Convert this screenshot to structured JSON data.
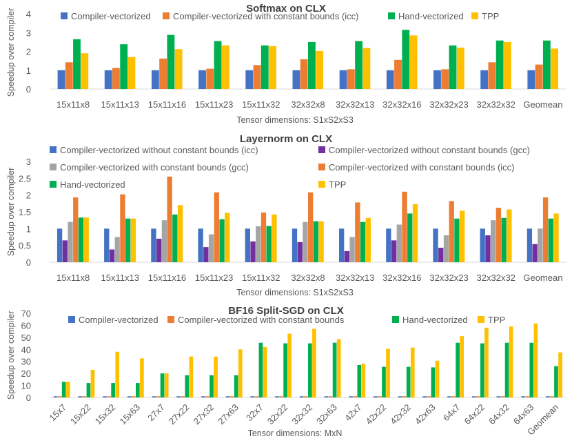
{
  "chart_data": [
    {
      "type": "bar",
      "title": "Softmax on CLX",
      "xlabel": "Tensor dimensions: S1xS2xS3",
      "ylabel": "Speedup over compiler",
      "ylim": [
        0,
        4
      ],
      "yticks": [
        0,
        1,
        2,
        3,
        4
      ],
      "grid": false,
      "legend_position": "top",
      "categories": [
        "15x11x8",
        "15x11x13",
        "15x11x16",
        "15x11x23",
        "15x11x32",
        "32x32x8",
        "32x32x13",
        "32x32x16",
        "32x32x23",
        "32x32x32",
        "Geomean"
      ],
      "series": [
        {
          "name": "Compiler-vectorized",
          "color": "#4472C4",
          "values": [
            1,
            1,
            1,
            1,
            1,
            1,
            1,
            1,
            1,
            1,
            1
          ]
        },
        {
          "name": "Compiler-vectorized with constant bounds (icc)",
          "color": "#ED7D31",
          "values": [
            1.42,
            1.12,
            1.62,
            1.08,
            1.27,
            1.58,
            1.05,
            1.55,
            1.05,
            1.42,
            1.3
          ]
        },
        {
          "name": "Hand-vectorized",
          "color": "#00B050",
          "values": [
            2.65,
            2.38,
            2.88,
            2.55,
            2.32,
            2.5,
            2.55,
            3.15,
            2.32,
            2.58,
            2.58
          ]
        },
        {
          "name": "TPP",
          "color": "#FFC000",
          "values": [
            1.9,
            1.7,
            2.12,
            2.32,
            2.28,
            2.02,
            2.18,
            2.85,
            2.2,
            2.5,
            2.15
          ]
        }
      ]
    },
    {
      "type": "bar",
      "title": "Layernorm on CLX",
      "xlabel": "Tensor dimensions: S1xS2xS3",
      "ylabel": "Speedup over compiler",
      "ylim": [
        0,
        3
      ],
      "yticks": [
        0,
        0.5,
        1,
        1.5,
        2,
        2.5,
        3
      ],
      "grid": false,
      "legend_position": "top",
      "categories": [
        "15x11x8",
        "15x11x13",
        "15x11x16",
        "15x11x23",
        "15x11x32",
        "32x32x8",
        "32x32x13",
        "32x32x16",
        "32x32x23",
        "32x32x32",
        "Geomean"
      ],
      "series": [
        {
          "name": "Compiler-vectorized without constant bounds  (icc)",
          "color": "#4472C4",
          "values": [
            1,
            1,
            1,
            1,
            1,
            1,
            1,
            1,
            1,
            1,
            1
          ]
        },
        {
          "name": "Compiler-vectorized without constant bounds  (gcc)",
          "color": "#7030A0",
          "values": [
            0.65,
            0.38,
            0.7,
            0.45,
            0.62,
            0.6,
            0.33,
            0.65,
            0.43,
            0.8,
            0.54
          ]
        },
        {
          "name": "Compiler-vectorized with constant bounds  (gcc)",
          "color": "#A5A5A5",
          "values": [
            1.2,
            0.75,
            1.25,
            0.83,
            1.07,
            1.2,
            0.75,
            1.12,
            0.8,
            1.25,
            1.0
          ]
        },
        {
          "name": "Compiler-vectorized with constant bounds (icc)",
          "color": "#ED7D31",
          "values": [
            1.93,
            2.02,
            2.55,
            2.08,
            1.48,
            2.08,
            1.78,
            2.1,
            1.82,
            1.62,
            1.93
          ]
        },
        {
          "name": "Hand-vectorized",
          "color": "#00B050",
          "values": [
            1.33,
            1.3,
            1.42,
            1.28,
            1.08,
            1.22,
            1.2,
            1.45,
            1.3,
            1.32,
            1.3
          ]
        },
        {
          "name": "TPP",
          "color": "#FFC000",
          "values": [
            1.33,
            1.3,
            1.7,
            1.47,
            1.42,
            1.22,
            1.32,
            1.73,
            1.53,
            1.57,
            1.45
          ]
        }
      ]
    },
    {
      "type": "bar",
      "title": "BF16 Split-SGD on CLX",
      "xlabel": "Tensor dimensions: MxN",
      "ylabel": "Speedup over compiler",
      "ylim": [
        0,
        70
      ],
      "yticks": [
        0,
        10,
        20,
        30,
        40,
        50,
        60,
        70
      ],
      "grid": false,
      "legend_position": "top",
      "categories": [
        "15x7",
        "15x22",
        "15x32",
        "15x63",
        "27x7",
        "27x22",
        "27x32",
        "27x63",
        "32x7",
        "32x22",
        "32x32",
        "32x63",
        "42x7",
        "42x22",
        "42x32",
        "42x63",
        "64x7",
        "64x22",
        "64x32",
        "64x63",
        "Geomean"
      ],
      "series": [
        {
          "name": "Compiler-vectorized",
          "color": "#4472C4",
          "values": [
            1,
            1,
            1,
            1,
            1,
            1,
            1,
            1,
            1,
            1,
            1,
            1,
            1,
            1,
            1,
            1,
            1,
            1,
            1,
            1,
            1
          ]
        },
        {
          "name": "Compiler-vectorized with constant bounds",
          "color": "#ED7D31",
          "values": [
            1,
            1,
            1,
            1,
            1,
            1,
            1,
            1,
            1,
            1,
            1,
            1,
            1,
            1,
            1,
            1,
            1,
            1,
            1,
            1,
            1
          ]
        },
        {
          "name": "Hand-vectorized",
          "color": "#00B050",
          "values": [
            13,
            12,
            12,
            12,
            20,
            18.5,
            18.5,
            18.5,
            45.5,
            45,
            45,
            45.5,
            27,
            25.5,
            25.5,
            25,
            45.5,
            45,
            45.5,
            45.5,
            26
          ]
        },
        {
          "name": "TPP",
          "color": "#FFC000",
          "values": [
            13,
            23,
            38,
            32.5,
            20,
            34,
            34,
            40,
            42,
            53,
            57,
            48.5,
            28,
            40.5,
            41.5,
            30.5,
            51,
            58,
            59,
            61.5,
            37.5
          ]
        }
      ]
    }
  ]
}
